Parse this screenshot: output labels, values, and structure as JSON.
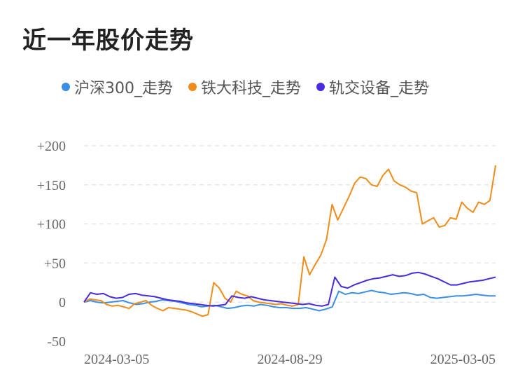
{
  "page": {
    "title": "近一年股价走势"
  },
  "chart_data": {
    "type": "line",
    "title": "近一年股价走势",
    "xlabel": "",
    "ylabel": "",
    "x_ticks": [
      "2024-03-05",
      "2024-08-29",
      "2025-03-05"
    ],
    "y_ticks": [
      "+200",
      "+150",
      "+100",
      "+50",
      "0",
      "-50"
    ],
    "ylim": [
      -50,
      200
    ],
    "grid": true,
    "legend": "top",
    "series": [
      {
        "name": "沪深300_走势",
        "color": "#3a8ee6",
        "values": [
          0,
          2,
          0,
          -1,
          0,
          1,
          2,
          -1,
          -3,
          -2,
          0,
          1,
          3,
          2,
          1,
          -1,
          -3,
          -4,
          -6,
          -5,
          -4,
          -6,
          -8,
          -7,
          -5,
          -4,
          -5,
          -3,
          -4,
          -6,
          -7,
          -7,
          -8,
          -8,
          -7,
          -9,
          -11,
          -9,
          -6,
          14,
          10,
          12,
          11,
          13,
          15,
          13,
          12,
          10,
          11,
          12,
          11,
          9,
          10,
          6,
          5,
          6,
          7,
          8,
          8,
          9,
          10,
          9,
          8,
          8
        ]
      },
      {
        "name": "铁大科技_走势",
        "color": "#ef8c1a",
        "values": [
          0,
          4,
          3,
          2,
          -3,
          -5,
          -4,
          -6,
          -8,
          -2,
          0,
          2,
          -4,
          -8,
          -11,
          -7,
          -8,
          -9,
          -10,
          -12,
          -15,
          -18,
          -16,
          25,
          18,
          5,
          0,
          14,
          10,
          8,
          2,
          0,
          -1,
          -2,
          -3,
          -2,
          -4,
          -5,
          -3,
          58,
          35,
          48,
          60,
          80,
          125,
          105,
          120,
          135,
          152,
          160,
          158,
          150,
          148,
          162,
          170,
          155,
          150,
          147,
          142,
          140,
          100,
          104,
          108,
          96,
          98,
          108,
          106,
          128,
          120,
          115,
          128,
          125,
          130,
          175
        ]
      },
      {
        "name": "轨交设备_走势",
        "color": "#4a2ae0",
        "values": [
          0,
          12,
          10,
          11,
          7,
          5,
          6,
          10,
          11,
          9,
          8,
          7,
          5,
          3,
          2,
          1,
          -1,
          -2,
          -3,
          -4,
          -5,
          -4,
          -3,
          8,
          6,
          5,
          7,
          5,
          3,
          2,
          1,
          0,
          -1,
          -2,
          -3,
          -2,
          -4,
          -5,
          -3,
          32,
          20,
          18,
          22,
          25,
          28,
          30,
          31,
          33,
          35,
          33,
          34,
          37,
          38,
          36,
          33,
          30,
          26,
          22,
          22,
          24,
          26,
          27,
          28,
          30,
          32
        ]
      }
    ]
  }
}
